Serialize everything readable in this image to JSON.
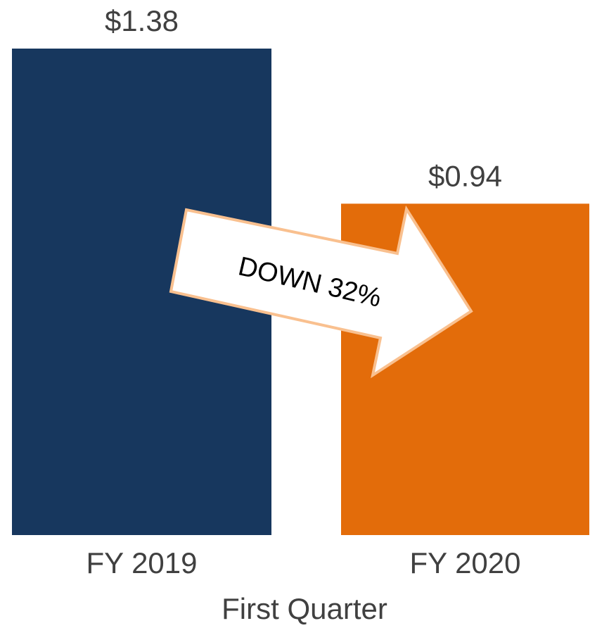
{
  "chart_data": {
    "type": "bar",
    "categories": [
      "FY 2019",
      "FY 2020"
    ],
    "values": [
      1.38,
      0.94
    ],
    "value_labels": [
      "$1.38",
      "$0.94"
    ],
    "colors": [
      "#17375e",
      "#e36c0a"
    ],
    "xlabel": "First Quarter",
    "annotation": "DOWN 32%"
  }
}
